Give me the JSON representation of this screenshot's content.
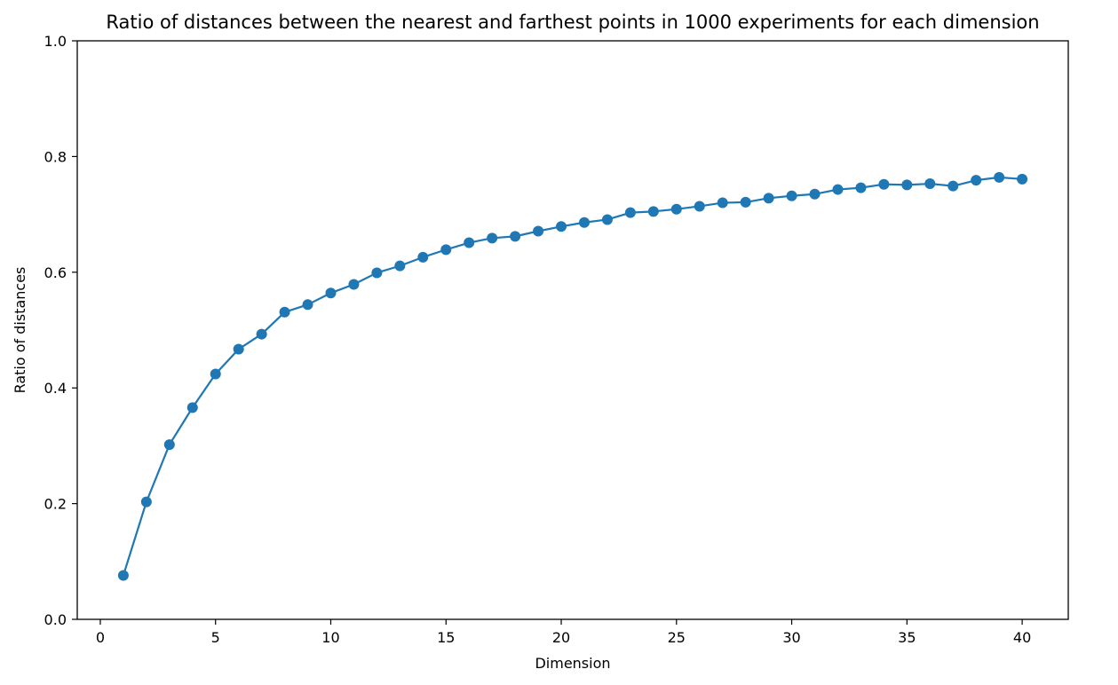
{
  "chart_data": {
    "type": "line",
    "title": "Ratio of distances between the nearest and farthest points in 1000 experiments for each dimension",
    "xlabel": "Dimension",
    "ylabel": "Ratio of distances",
    "xlim": [
      -1,
      42
    ],
    "ylim": [
      0,
      1.0
    ],
    "grid": false,
    "marker": "circle",
    "x_ticks": [
      0,
      5,
      10,
      15,
      20,
      25,
      30,
      35,
      40
    ],
    "x_tick_labels": [
      "0",
      "5",
      "10",
      "15",
      "20",
      "25",
      "30",
      "35",
      "40"
    ],
    "y_ticks": [
      0,
      0.2,
      0.4,
      0.6,
      0.8,
      1.0
    ],
    "y_tick_labels": [
      "0.0",
      "0.2",
      "0.4",
      "0.6",
      "0.8",
      "1.0"
    ],
    "series": [
      {
        "color": "#1f77b4",
        "x": [
          1,
          2,
          3,
          4,
          5,
          6,
          7,
          8,
          9,
          10,
          11,
          12,
          13,
          14,
          15,
          16,
          17,
          18,
          19,
          20,
          21,
          22,
          23,
          24,
          25,
          26,
          27,
          28,
          29,
          30,
          31,
          32,
          33,
          34,
          35,
          36,
          37,
          38,
          39,
          40
        ],
        "y": [
          0.076,
          0.203,
          0.302,
          0.366,
          0.424,
          0.467,
          0.493,
          0.531,
          0.544,
          0.564,
          0.579,
          0.599,
          0.611,
          0.626,
          0.639,
          0.651,
          0.659,
          0.662,
          0.671,
          0.679,
          0.686,
          0.691,
          0.703,
          0.705,
          0.709,
          0.714,
          0.72,
          0.721,
          0.728,
          0.732,
          0.735,
          0.743,
          0.746,
          0.752,
          0.751,
          0.753,
          0.749,
          0.759,
          0.764,
          0.761
        ]
      }
    ]
  }
}
